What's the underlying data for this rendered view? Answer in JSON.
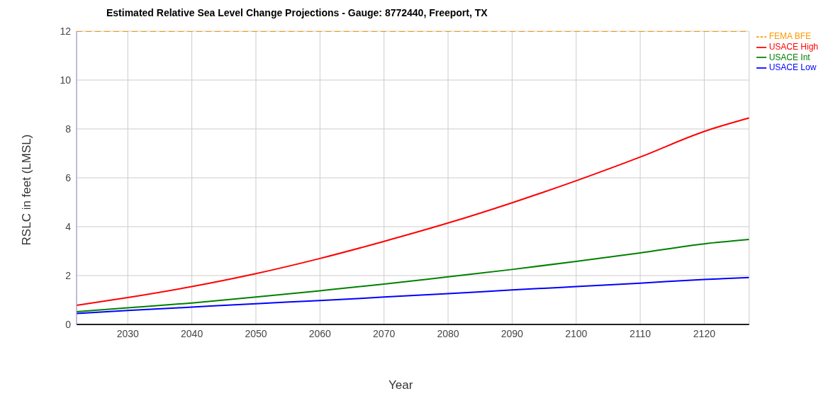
{
  "chart_data": {
    "type": "line",
    "title": "Estimated Relative Sea Level Change Projections - Gauge: 8772440, Freeport, TX",
    "xlabel": "Year",
    "ylabel": "RSLC in feet (LMSL)",
    "x": [
      2022,
      2030,
      2040,
      2050,
      2060,
      2070,
      2080,
      2090,
      2100,
      2110,
      2120,
      2127
    ],
    "series": [
      {
        "name": "USACE High",
        "color": "#ff0000",
        "values": [
          0.78,
          1.1,
          1.55,
          2.08,
          2.7,
          3.4,
          4.15,
          4.98,
          5.88,
          6.85,
          7.9,
          8.45
        ]
      },
      {
        "name": "USACE Int",
        "color": "#008000",
        "values": [
          0.52,
          0.68,
          0.88,
          1.12,
          1.38,
          1.65,
          1.95,
          2.25,
          2.58,
          2.93,
          3.3,
          3.48
        ]
      },
      {
        "name": "USACE Low",
        "color": "#0000ff",
        "values": [
          0.45,
          0.57,
          0.71,
          0.85,
          0.98,
          1.12,
          1.26,
          1.41,
          1.55,
          1.69,
          1.84,
          1.92
        ]
      },
      {
        "name": "FEMA BFE",
        "color": "#ff9900",
        "line_style": "dashed",
        "values": [
          12,
          12,
          12,
          12,
          12,
          12,
          12,
          12,
          12,
          12,
          12,
          12
        ]
      }
    ],
    "xlim": [
      2022,
      2127
    ],
    "xticks": [
      2030,
      2040,
      2050,
      2060,
      2070,
      2080,
      2090,
      2100,
      2110,
      2120
    ],
    "ylim": [
      0,
      12
    ],
    "yticks": [
      0,
      2,
      4,
      6,
      8,
      10,
      12
    ],
    "grid": true,
    "legend": "top right",
    "marker": "none",
    "line_style": "solid"
  }
}
